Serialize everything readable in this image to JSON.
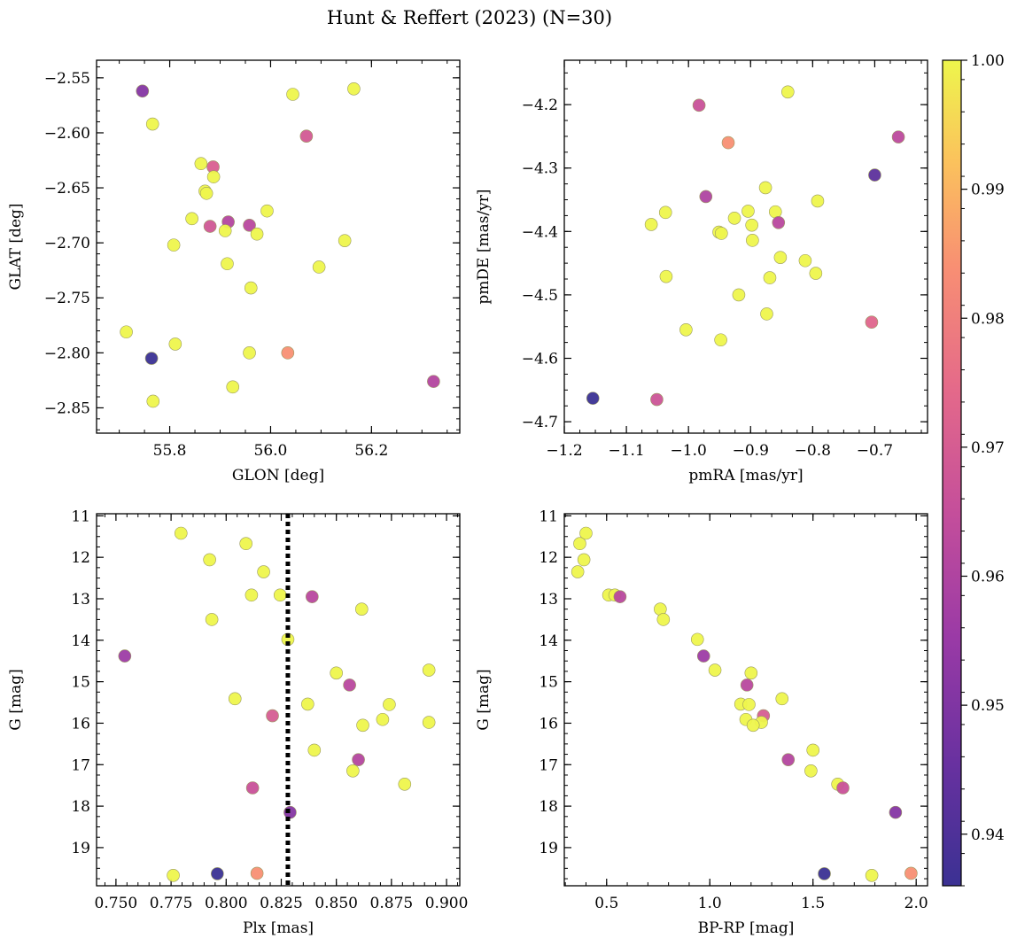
{
  "figure": {
    "title": "Hunt & Reffert (2023) (N=30)"
  },
  "colorbar": {
    "min": 0.936,
    "max": 1.0,
    "ticks": [
      0.94,
      0.95,
      0.96,
      0.97,
      0.98,
      0.99,
      1.0
    ],
    "tick_labels": [
      "0.94",
      "0.95",
      "0.96",
      "0.97",
      "0.98",
      "0.99",
      "1.00"
    ],
    "colormap": "plasma"
  },
  "chart_data": [
    {
      "type": "scatter",
      "id": "glon-glat",
      "title": "",
      "xlabel": "GLON [deg]",
      "ylabel": "GLAT [deg]",
      "xlim": [
        55.655,
        56.375
      ],
      "ylim": [
        -2.873,
        -2.534
      ],
      "xticks": [
        55.8,
        56.0,
        56.2
      ],
      "xtick_labels": [
        "55.8",
        "56.0",
        "56.2"
      ],
      "yticks": [
        -2.55,
        -2.6,
        -2.65,
        -2.7,
        -2.75,
        -2.8,
        -2.85
      ],
      "ytick_labels": [
        "−2.55",
        "−2.60",
        "−2.65",
        "−2.70",
        "−2.75",
        "−2.80",
        "−2.85"
      ],
      "points": [
        {
          "x": 55.746,
          "y": -2.562,
          "c": 0.951
        },
        {
          "x": 55.766,
          "y": -2.592,
          "c": 1.0
        },
        {
          "x": 56.044,
          "y": -2.565,
          "c": 1.0
        },
        {
          "x": 56.165,
          "y": -2.56,
          "c": 1.0
        },
        {
          "x": 56.071,
          "y": -2.603,
          "c": 0.969
        },
        {
          "x": 55.862,
          "y": -2.628,
          "c": 1.0
        },
        {
          "x": 55.886,
          "y": -2.631,
          "c": 0.971
        },
        {
          "x": 55.887,
          "y": -2.64,
          "c": 1.0
        },
        {
          "x": 55.87,
          "y": -2.653,
          "c": 1.0
        },
        {
          "x": 55.873,
          "y": -2.655,
          "c": 1.0
        },
        {
          "x": 55.844,
          "y": -2.678,
          "c": 1.0
        },
        {
          "x": 55.916,
          "y": -2.681,
          "c": 0.961
        },
        {
          "x": 55.88,
          "y": -2.685,
          "c": 0.968
        },
        {
          "x": 55.958,
          "y": -2.684,
          "c": 0.962
        },
        {
          "x": 55.993,
          "y": -2.671,
          "c": 1.0
        },
        {
          "x": 55.91,
          "y": -2.689,
          "c": 1.0
        },
        {
          "x": 55.973,
          "y": -2.692,
          "c": 1.0
        },
        {
          "x": 55.808,
          "y": -2.702,
          "c": 1.0
        },
        {
          "x": 56.147,
          "y": -2.698,
          "c": 1.0
        },
        {
          "x": 55.914,
          "y": -2.719,
          "c": 1.0
        },
        {
          "x": 56.096,
          "y": -2.722,
          "c": 1.0
        },
        {
          "x": 55.961,
          "y": -2.741,
          "c": 1.0
        },
        {
          "x": 55.714,
          "y": -2.781,
          "c": 1.0
        },
        {
          "x": 55.811,
          "y": -2.792,
          "c": 1.0
        },
        {
          "x": 55.764,
          "y": -2.805,
          "c": 0.936
        },
        {
          "x": 55.958,
          "y": -2.8,
          "c": 1.0
        },
        {
          "x": 56.034,
          "y": -2.8,
          "c": 0.984
        },
        {
          "x": 55.925,
          "y": -2.831,
          "c": 1.0
        },
        {
          "x": 56.323,
          "y": -2.826,
          "c": 0.961
        },
        {
          "x": 55.767,
          "y": -2.844,
          "c": 1.0
        }
      ]
    },
    {
      "type": "scatter",
      "id": "pmra-pmde",
      "title": "",
      "xlabel": "pmRA [mas/yr]",
      "ylabel": "pmDE [mas/yr]",
      "xlim": [
        -1.2,
        -0.615
      ],
      "ylim": [
        -4.718,
        -4.13
      ],
      "xticks": [
        -1.2,
        -1.1,
        -1.0,
        -0.9,
        -0.8,
        -0.7
      ],
      "xtick_labels": [
        "−1.2",
        "−1.1",
        "−1.0",
        "−0.9",
        "−0.8",
        "−0.7"
      ],
      "yticks": [
        -4.2,
        -4.3,
        -4.4,
        -4.5,
        -4.6,
        -4.7
      ],
      "ytick_labels": [
        "−4.2",
        "−4.3",
        "−4.4",
        "−4.5",
        "−4.6",
        "−4.7"
      ],
      "points": [
        {
          "x": -0.84,
          "y": -4.18,
          "c": 1.0
        },
        {
          "x": -0.983,
          "y": -4.201,
          "c": 0.966
        },
        {
          "x": -0.662,
          "y": -4.251,
          "c": 0.963
        },
        {
          "x": -0.936,
          "y": -4.26,
          "c": 0.984
        },
        {
          "x": -0.7,
          "y": -4.311,
          "c": 0.943
        },
        {
          "x": -0.876,
          "y": -4.331,
          "c": 1.0
        },
        {
          "x": -0.972,
          "y": -4.345,
          "c": 0.96
        },
        {
          "x": -0.792,
          "y": -4.352,
          "c": 1.0
        },
        {
          "x": -1.037,
          "y": -4.37,
          "c": 1.0
        },
        {
          "x": -0.904,
          "y": -4.368,
          "c": 1.0
        },
        {
          "x": -0.86,
          "y": -4.369,
          "c": 1.0
        },
        {
          "x": -0.926,
          "y": -4.379,
          "c": 1.0
        },
        {
          "x": -0.855,
          "y": -4.386,
          "c": 0.962
        },
        {
          "x": -1.06,
          "y": -4.389,
          "c": 1.0
        },
        {
          "x": -0.898,
          "y": -4.39,
          "c": 1.0
        },
        {
          "x": -0.951,
          "y": -4.401,
          "c": 1.0
        },
        {
          "x": -0.947,
          "y": -4.403,
          "c": 1.0
        },
        {
          "x": -0.897,
          "y": -4.414,
          "c": 1.0
        },
        {
          "x": -0.852,
          "y": -4.441,
          "c": 1.0
        },
        {
          "x": -0.812,
          "y": -4.446,
          "c": 1.0
        },
        {
          "x": -0.795,
          "y": -4.466,
          "c": 1.0
        },
        {
          "x": -1.036,
          "y": -4.471,
          "c": 1.0
        },
        {
          "x": -0.869,
          "y": -4.473,
          "c": 1.0
        },
        {
          "x": -0.919,
          "y": -4.5,
          "c": 1.0
        },
        {
          "x": -0.874,
          "y": -4.53,
          "c": 1.0
        },
        {
          "x": -0.705,
          "y": -4.543,
          "c": 0.973
        },
        {
          "x": -1.004,
          "y": -4.555,
          "c": 1.0
        },
        {
          "x": -0.948,
          "y": -4.571,
          "c": 1.0
        },
        {
          "x": -1.154,
          "y": -4.663,
          "c": 0.936
        },
        {
          "x": -1.051,
          "y": -4.665,
          "c": 0.967
        }
      ]
    },
    {
      "type": "scatter",
      "id": "plx-g",
      "title": "",
      "xlabel": "Plx [mas]",
      "ylabel": "G [mag]",
      "xlim": [
        0.7412,
        0.906
      ],
      "ylim": [
        19.92,
        10.95
      ],
      "invert_y": true,
      "vline": {
        "x": 0.828,
        "style": "dotted",
        "color": "#000000"
      },
      "xticks": [
        0.75,
        0.775,
        0.8,
        0.825,
        0.85,
        0.875,
        0.9
      ],
      "xtick_labels": [
        "0.750",
        "0.775",
        "0.800",
        "0.825",
        "0.850",
        "0.875",
        "0.900"
      ],
      "yticks": [
        11,
        12,
        13,
        14,
        15,
        16,
        17,
        18,
        19
      ],
      "ytick_labels": [
        "11",
        "12",
        "13",
        "14",
        "15",
        "16",
        "17",
        "18",
        "19"
      ],
      "points": [
        {
          "x": 0.7795,
          "y": 11.42,
          "c": 1.0
        },
        {
          "x": 0.809,
          "y": 11.67,
          "c": 1.0
        },
        {
          "x": 0.7925,
          "y": 12.06,
          "c": 1.0
        },
        {
          "x": 0.817,
          "y": 12.35,
          "c": 1.0
        },
        {
          "x": 0.8115,
          "y": 12.91,
          "c": 1.0
        },
        {
          "x": 0.8245,
          "y": 12.91,
          "c": 1.0
        },
        {
          "x": 0.839,
          "y": 12.95,
          "c": 0.962
        },
        {
          "x": 0.8615,
          "y": 13.25,
          "c": 1.0
        },
        {
          "x": 0.7935,
          "y": 13.5,
          "c": 1.0
        },
        {
          "x": 0.828,
          "y": 13.98,
          "c": 1.0
        },
        {
          "x": 0.754,
          "y": 14.38,
          "c": 0.956
        },
        {
          "x": 0.892,
          "y": 14.72,
          "c": 1.0
        },
        {
          "x": 0.85,
          "y": 14.79,
          "c": 1.0
        },
        {
          "x": 0.856,
          "y": 15.08,
          "c": 0.962
        },
        {
          "x": 0.804,
          "y": 15.41,
          "c": 1.0
        },
        {
          "x": 0.837,
          "y": 15.54,
          "c": 1.0
        },
        {
          "x": 0.874,
          "y": 15.55,
          "c": 1.0
        },
        {
          "x": 0.821,
          "y": 15.82,
          "c": 0.97
        },
        {
          "x": 0.871,
          "y": 15.91,
          "c": 1.0
        },
        {
          "x": 0.892,
          "y": 15.98,
          "c": 1.0
        },
        {
          "x": 0.862,
          "y": 16.05,
          "c": 1.0
        },
        {
          "x": 0.84,
          "y": 16.65,
          "c": 1.0
        },
        {
          "x": 0.86,
          "y": 16.88,
          "c": 0.961
        },
        {
          "x": 0.8575,
          "y": 17.15,
          "c": 1.0
        },
        {
          "x": 0.881,
          "y": 17.47,
          "c": 1.0
        },
        {
          "x": 0.812,
          "y": 17.56,
          "c": 0.966
        },
        {
          "x": 0.829,
          "y": 18.15,
          "c": 0.951
        },
        {
          "x": 0.776,
          "y": 19.67,
          "c": 1.0
        },
        {
          "x": 0.796,
          "y": 19.63,
          "c": 0.936
        },
        {
          "x": 0.814,
          "y": 19.62,
          "c": 0.984
        }
      ]
    },
    {
      "type": "scatter",
      "id": "bprp-g",
      "title": "",
      "xlabel": "BP-RP [mag]",
      "ylabel": "G [mag]",
      "xlim": [
        0.295,
        2.055
      ],
      "ylim": [
        19.92,
        10.95
      ],
      "invert_y": true,
      "xticks": [
        0.5,
        1.0,
        1.5,
        2.0
      ],
      "xtick_labels": [
        "0.5",
        "1.0",
        "1.5",
        "2.0"
      ],
      "yticks": [
        11,
        12,
        13,
        14,
        15,
        16,
        17,
        18,
        19
      ],
      "ytick_labels": [
        "11",
        "12",
        "13",
        "14",
        "15",
        "16",
        "17",
        "18",
        "19"
      ],
      "points": [
        {
          "x": 0.4,
          "y": 11.42,
          "c": 1.0
        },
        {
          "x": 0.37,
          "y": 11.67,
          "c": 1.0
        },
        {
          "x": 0.39,
          "y": 12.06,
          "c": 1.0
        },
        {
          "x": 0.36,
          "y": 12.35,
          "c": 1.0
        },
        {
          "x": 0.51,
          "y": 12.91,
          "c": 1.0
        },
        {
          "x": 0.54,
          "y": 12.91,
          "c": 1.0
        },
        {
          "x": 0.565,
          "y": 12.95,
          "c": 0.962
        },
        {
          "x": 0.76,
          "y": 13.25,
          "c": 1.0
        },
        {
          "x": 0.775,
          "y": 13.5,
          "c": 1.0
        },
        {
          "x": 0.94,
          "y": 13.98,
          "c": 1.0
        },
        {
          "x": 0.97,
          "y": 14.38,
          "c": 0.956
        },
        {
          "x": 1.025,
          "y": 14.72,
          "c": 1.0
        },
        {
          "x": 1.2,
          "y": 14.79,
          "c": 1.0
        },
        {
          "x": 1.18,
          "y": 15.08,
          "c": 0.962
        },
        {
          "x": 1.35,
          "y": 15.41,
          "c": 1.0
        },
        {
          "x": 1.15,
          "y": 15.54,
          "c": 1.0
        },
        {
          "x": 1.19,
          "y": 15.55,
          "c": 1.0
        },
        {
          "x": 1.26,
          "y": 15.82,
          "c": 0.97
        },
        {
          "x": 1.175,
          "y": 15.91,
          "c": 1.0
        },
        {
          "x": 1.25,
          "y": 15.98,
          "c": 1.0
        },
        {
          "x": 1.21,
          "y": 16.05,
          "c": 1.0
        },
        {
          "x": 1.5,
          "y": 16.65,
          "c": 1.0
        },
        {
          "x": 1.38,
          "y": 16.88,
          "c": 0.961
        },
        {
          "x": 1.49,
          "y": 17.15,
          "c": 1.0
        },
        {
          "x": 1.62,
          "y": 17.47,
          "c": 1.0
        },
        {
          "x": 1.645,
          "y": 17.56,
          "c": 0.966
        },
        {
          "x": 1.9,
          "y": 18.15,
          "c": 0.951
        },
        {
          "x": 1.785,
          "y": 19.67,
          "c": 1.0
        },
        {
          "x": 1.555,
          "y": 19.63,
          "c": 0.936
        },
        {
          "x": 1.975,
          "y": 19.62,
          "c": 0.984
        }
      ]
    }
  ]
}
